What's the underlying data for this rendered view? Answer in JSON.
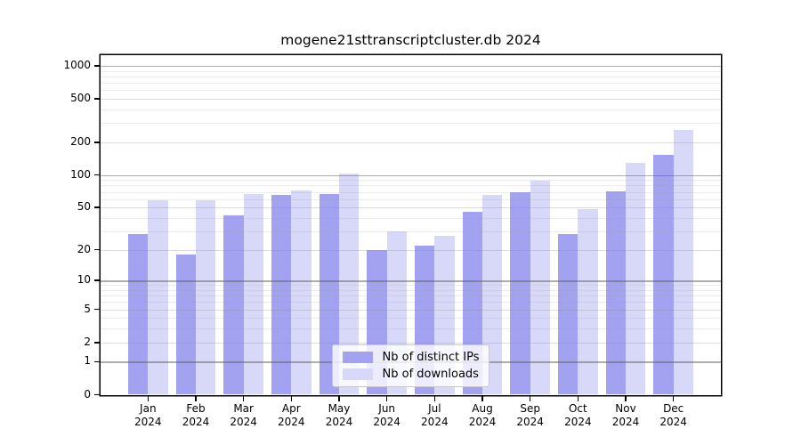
{
  "chart_data": {
    "type": "bar",
    "title": "mogene21sttranscriptcluster.db 2024",
    "categories": [
      "Jan",
      "Feb",
      "Mar",
      "Apr",
      "May",
      "Jun",
      "Jul",
      "Aug",
      "Sep",
      "Oct",
      "Nov",
      "Dec"
    ],
    "category_year": "2024",
    "series": [
      {
        "name": "Nb of distinct IPs",
        "color": "#a2a2f1",
        "values": [
          28,
          18,
          42,
          66,
          67,
          20,
          22,
          46,
          69,
          28,
          71,
          153
        ]
      },
      {
        "name": "Nb of downloads",
        "color": "#d8d8f9",
        "values": [
          58,
          59,
          67,
          72,
          104,
          30,
          27,
          66,
          89,
          48,
          130,
          260
        ]
      }
    ],
    "y_axis": {
      "scale": "log1p",
      "tick_values": [
        0,
        1,
        2,
        5,
        10,
        20,
        50,
        100,
        200,
        500,
        1000
      ],
      "tick_labels": [
        "0",
        "1",
        "2",
        "5",
        "10",
        "20",
        "50",
        "100",
        "200",
        "500",
        "1000"
      ],
      "major_values": [
        1,
        10,
        100,
        1000
      ],
      "minor_unlabeled": [
        3,
        4,
        6,
        7,
        8,
        9,
        30,
        40,
        60,
        70,
        80,
        90,
        300,
        400,
        600,
        700,
        800,
        900
      ],
      "ymax": 1252
    },
    "legend_position": "lower center",
    "grid": true,
    "colors": {
      "distinct_ips": "#a2a2f1",
      "downloads": "#d8d8f9",
      "axis": "#000000",
      "grid_major": "#b5b5b5",
      "grid_minor": "#e4e4e4"
    }
  }
}
